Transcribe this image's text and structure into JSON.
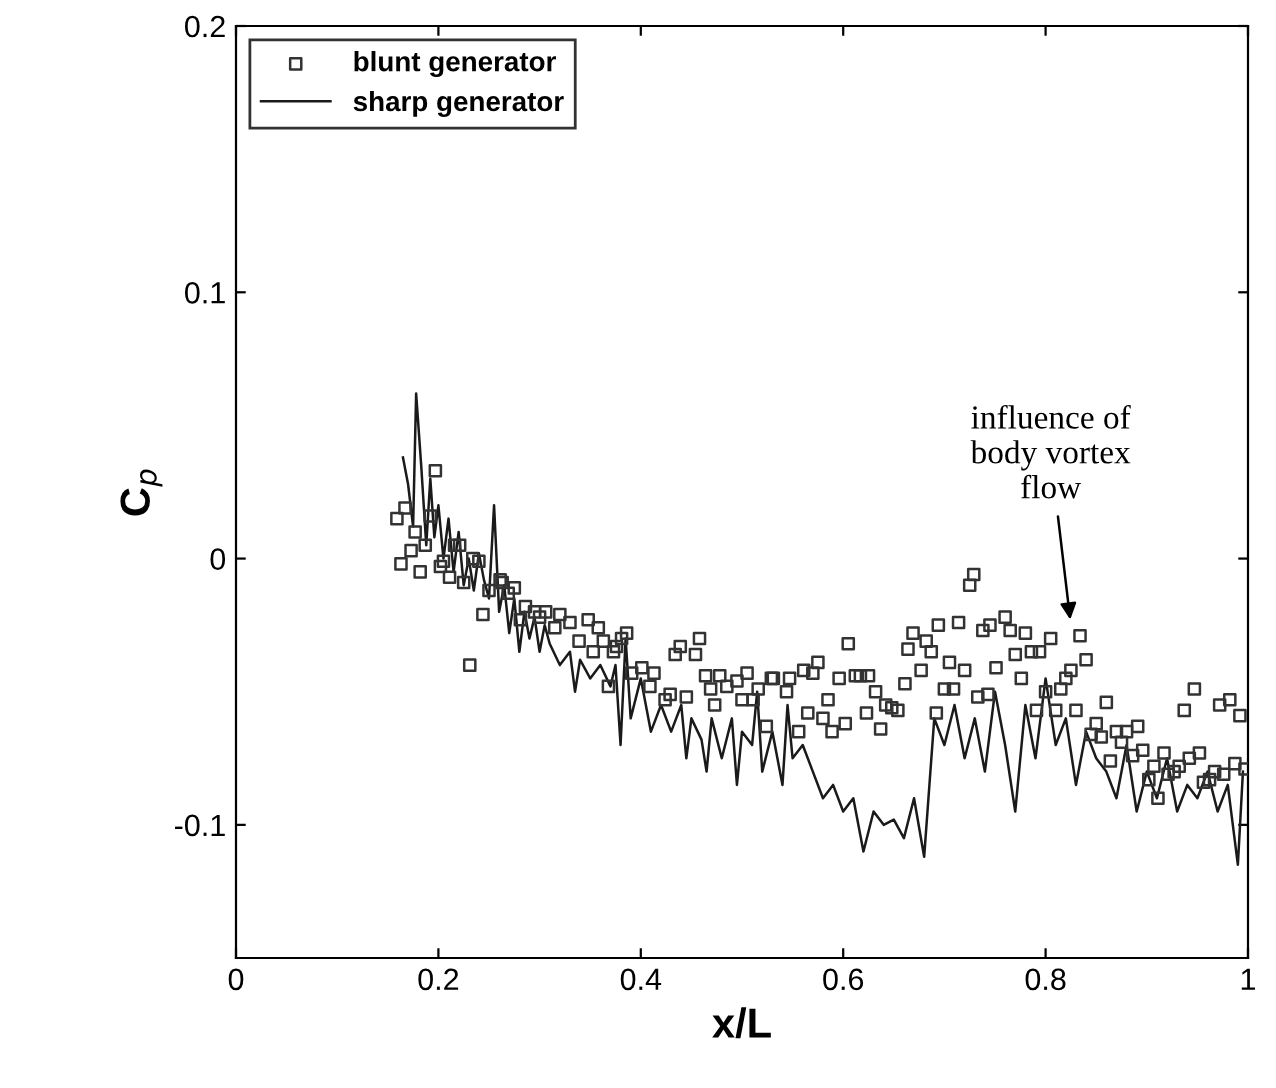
{
  "chart_data": {
    "type": "scatter",
    "xlabel": "x/L",
    "ylabel": "C$_{p}$",
    "xlim": [
      0,
      1
    ],
    "ylim": [
      -0.15,
      0.2
    ],
    "xticks": [
      0,
      0.2,
      0.4,
      0.6,
      0.8,
      1
    ],
    "yticks": [
      {
        "value": -0.1,
        "label": "-0.1"
      },
      0,
      0.1,
      0.2
    ],
    "legend": "top left",
    "grid": false,
    "annotations": [
      {
        "text": "influence of\nbody vortex\nflow",
        "x": 0.825,
        "y": -0.025
      }
    ],
    "series": [
      {
        "name": "blunt generator",
        "marker": "square",
        "color": "#333333",
        "x": [
          0.159,
          0.167,
          0.197,
          0.177,
          0.173,
          0.163,
          0.182,
          0.187,
          0.192,
          0.205,
          0.211,
          0.202,
          0.216,
          0.221,
          0.225,
          0.231,
          0.24,
          0.234,
          0.244,
          0.25,
          0.261,
          0.263,
          0.269,
          0.275,
          0.281,
          0.286,
          0.295,
          0.306,
          0.3,
          0.315,
          0.32,
          0.33,
          0.339,
          0.348,
          0.353,
          0.358,
          0.363,
          0.373,
          0.376,
          0.381,
          0.386,
          0.368,
          0.391,
          0.401,
          0.409,
          0.413,
          0.424,
          0.429,
          0.434,
          0.439,
          0.445,
          0.454,
          0.458,
          0.464,
          0.469,
          0.473,
          0.478,
          0.485,
          0.495,
          0.5,
          0.505,
          0.511,
          0.516,
          0.524,
          0.529,
          0.531,
          0.544,
          0.547,
          0.561,
          0.57,
          0.575,
          0.556,
          0.565,
          0.58,
          0.585,
          0.589,
          0.596,
          0.602,
          0.605,
          0.612,
          0.617,
          0.625,
          0.623,
          0.632,
          0.637,
          0.642,
          0.648,
          0.654,
          0.661,
          0.664,
          0.669,
          0.677,
          0.682,
          0.687,
          0.692,
          0.694,
          0.7,
          0.705,
          0.709,
          0.714,
          0.72,
          0.725,
          0.729,
          0.733,
          0.738,
          0.743,
          0.745,
          0.751,
          0.76,
          0.765,
          0.77,
          0.776,
          0.78,
          0.786,
          0.791,
          0.794,
          0.8,
          0.805,
          0.81,
          0.815,
          0.82,
          0.825,
          0.83,
          0.834,
          0.84,
          0.845,
          0.85,
          0.855,
          0.86,
          0.864,
          0.87,
          0.875,
          0.88,
          0.886,
          0.891,
          0.896,
          0.902,
          0.907,
          0.911,
          0.917,
          0.921,
          0.927,
          0.932,
          0.937,
          0.942,
          0.947,
          0.952,
          0.956,
          0.962,
          0.967,
          0.972,
          0.976,
          0.982,
          0.987,
          0.992,
          0.997
        ],
        "values": [
          0.015,
          0.019,
          0.033,
          0.01,
          0.003,
          -0.002,
          -0.005,
          0.005,
          0.016,
          -0.001,
          -0.007,
          -0.003,
          0.005,
          0.005,
          -0.009,
          -0.04,
          -0.001,
          0.0,
          -0.021,
          -0.012,
          -0.008,
          -0.009,
          -0.013,
          -0.011,
          -0.023,
          -0.018,
          -0.02,
          -0.02,
          -0.022,
          -0.026,
          -0.021,
          -0.024,
          -0.031,
          -0.023,
          -0.035,
          -0.026,
          -0.031,
          -0.035,
          -0.033,
          -0.03,
          -0.028,
          -0.048,
          -0.043,
          -0.041,
          -0.048,
          -0.043,
          -0.053,
          -0.051,
          -0.036,
          -0.033,
          -0.052,
          -0.036,
          -0.03,
          -0.044,
          -0.049,
          -0.055,
          -0.044,
          -0.048,
          -0.046,
          -0.053,
          -0.043,
          -0.053,
          -0.049,
          -0.063,
          -0.045,
          -0.045,
          -0.05,
          -0.045,
          -0.042,
          -0.043,
          -0.039,
          -0.065,
          -0.058,
          -0.06,
          -0.053,
          -0.065,
          -0.045,
          -0.062,
          -0.032,
          -0.044,
          -0.044,
          -0.044,
          -0.058,
          -0.05,
          -0.064,
          -0.055,
          -0.056,
          -0.057,
          -0.047,
          -0.034,
          -0.028,
          -0.042,
          -0.031,
          -0.035,
          -0.058,
          -0.025,
          -0.049,
          -0.039,
          -0.049,
          -0.024,
          -0.042,
          -0.01,
          -0.006,
          -0.052,
          -0.027,
          -0.051,
          -0.025,
          -0.041,
          -0.022,
          -0.027,
          -0.036,
          -0.045,
          -0.028,
          -0.035,
          -0.057,
          -0.035,
          -0.05,
          -0.03,
          -0.057,
          -0.049,
          -0.045,
          -0.042,
          -0.057,
          -0.029,
          -0.038,
          -0.066,
          -0.062,
          -0.067,
          -0.054,
          -0.076,
          -0.065,
          -0.069,
          -0.065,
          -0.074,
          -0.063,
          -0.072,
          -0.083,
          -0.078,
          -0.09,
          -0.073,
          -0.081,
          -0.08,
          -0.078,
          -0.057,
          -0.075,
          -0.049,
          -0.073,
          -0.084,
          -0.083,
          -0.08,
          -0.055,
          -0.081,
          -0.053,
          -0.077,
          -0.059,
          -0.079
        ]
      },
      {
        "name": "sharp generator",
        "type": "line",
        "marker": "none",
        "line_style": "solid",
        "color": "#1a1a1a",
        "x": [
          0.165,
          0.17,
          0.175,
          0.178,
          0.183,
          0.188,
          0.192,
          0.196,
          0.2,
          0.205,
          0.21,
          0.215,
          0.22,
          0.225,
          0.23,
          0.235,
          0.24,
          0.245,
          0.25,
          0.255,
          0.26,
          0.265,
          0.27,
          0.275,
          0.28,
          0.285,
          0.29,
          0.295,
          0.3,
          0.305,
          0.31,
          0.32,
          0.33,
          0.335,
          0.34,
          0.35,
          0.36,
          0.37,
          0.375,
          0.38,
          0.385,
          0.39,
          0.4,
          0.41,
          0.42,
          0.43,
          0.44,
          0.445,
          0.45,
          0.46,
          0.465,
          0.47,
          0.48,
          0.49,
          0.495,
          0.5,
          0.51,
          0.515,
          0.52,
          0.53,
          0.54,
          0.545,
          0.55,
          0.56,
          0.57,
          0.58,
          0.59,
          0.6,
          0.61,
          0.62,
          0.63,
          0.64,
          0.65,
          0.66,
          0.67,
          0.68,
          0.69,
          0.7,
          0.71,
          0.72,
          0.73,
          0.74,
          0.75,
          0.76,
          0.77,
          0.78,
          0.79,
          0.8,
          0.81,
          0.82,
          0.83,
          0.84,
          0.85,
          0.86,
          0.87,
          0.88,
          0.89,
          0.9,
          0.91,
          0.92,
          0.93,
          0.94,
          0.95,
          0.96,
          0.97,
          0.98,
          0.99,
          0.995
        ],
        "values": [
          0.038,
          0.028,
          0.012,
          0.062,
          0.035,
          0.005,
          0.03,
          0.008,
          0.02,
          0.0,
          0.015,
          -0.005,
          0.01,
          -0.01,
          0.0,
          -0.012,
          0.002,
          -0.008,
          -0.015,
          0.02,
          -0.02,
          -0.01,
          -0.028,
          -0.015,
          -0.035,
          -0.02,
          -0.03,
          -0.022,
          -0.035,
          -0.025,
          -0.032,
          -0.04,
          -0.035,
          -0.05,
          -0.038,
          -0.045,
          -0.04,
          -0.048,
          -0.04,
          -0.07,
          -0.03,
          -0.06,
          -0.045,
          -0.065,
          -0.055,
          -0.065,
          -0.055,
          -0.075,
          -0.06,
          -0.068,
          -0.08,
          -0.06,
          -0.075,
          -0.06,
          -0.085,
          -0.065,
          -0.07,
          -0.05,
          -0.08,
          -0.065,
          -0.085,
          -0.055,
          -0.075,
          -0.07,
          -0.08,
          -0.09,
          -0.085,
          -0.095,
          -0.09,
          -0.11,
          -0.095,
          -0.1,
          -0.098,
          -0.105,
          -0.09,
          -0.112,
          -0.06,
          -0.07,
          -0.055,
          -0.075,
          -0.06,
          -0.08,
          -0.05,
          -0.07,
          -0.095,
          -0.055,
          -0.075,
          -0.045,
          -0.07,
          -0.06,
          -0.085,
          -0.065,
          -0.075,
          -0.08,
          -0.09,
          -0.07,
          -0.095,
          -0.08,
          -0.09,
          -0.075,
          -0.095,
          -0.085,
          -0.09,
          -0.08,
          -0.095,
          -0.085,
          -0.115,
          -0.08
        ]
      }
    ]
  }
}
